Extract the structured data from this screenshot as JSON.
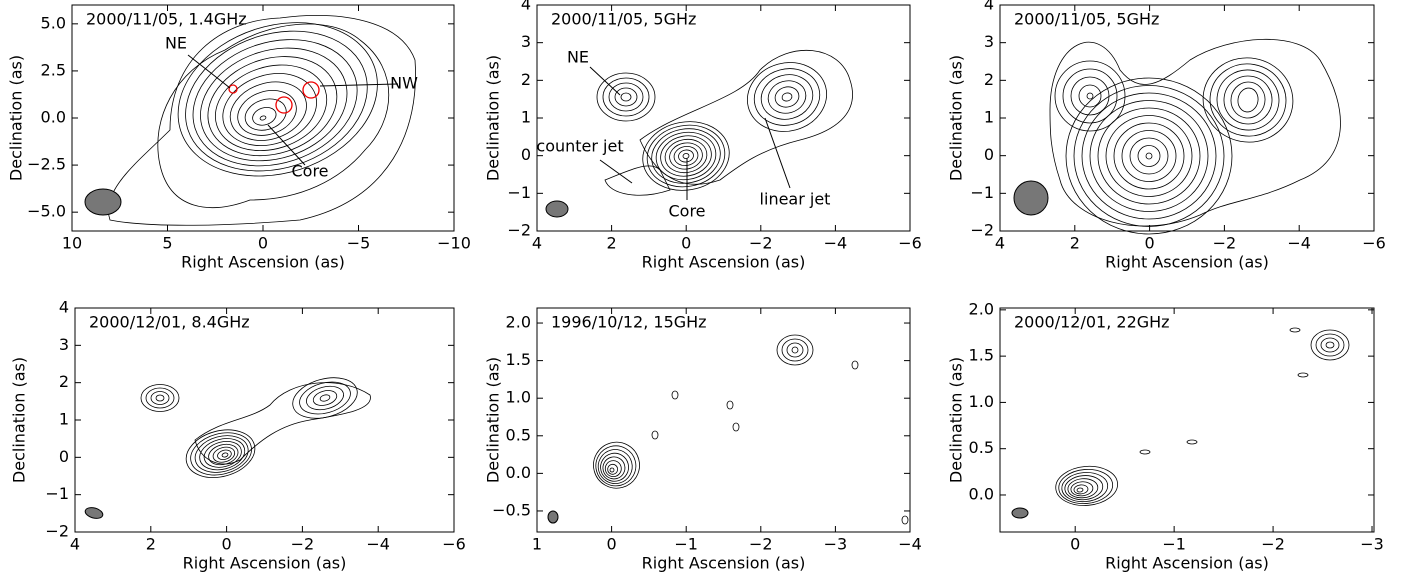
{
  "chart_data": [
    {
      "type": "contour",
      "title": "2000/11/05, 1.4GHz",
      "x_label": "Right Ascension (as)",
      "y_label": "Declination (as)",
      "xlim": [
        10,
        -10
      ],
      "xticks": [
        10,
        5,
        0,
        {
          "value": -5,
          "label": "−5"
        },
        {
          "value": -10,
          "label": "−10"
        }
      ],
      "ylim": [
        -6,
        6
      ],
      "yticks": [
        {
          "value": -5,
          "label": "−5.0"
        },
        {
          "value": -2.5,
          "label": "−2.5"
        },
        {
          "value": 0,
          "label": "0.0"
        },
        {
          "value": 2.5,
          "label": "2.5"
        },
        {
          "value": 5,
          "label": "5.0"
        }
      ],
      "annotations": [
        "NE",
        "NW",
        "Core"
      ]
    },
    {
      "type": "contour",
      "title": "2000/11/05, 5GHz",
      "x_label": "Right Ascension (as)",
      "y_label": "Declination (as)",
      "xlim": [
        4,
        -6
      ],
      "xticks": [
        4,
        2,
        0,
        {
          "value": -2,
          "label": "−2"
        },
        {
          "value": -4,
          "label": "−4"
        },
        {
          "value": -6,
          "label": "−6"
        }
      ],
      "ylim": [
        -2,
        4
      ],
      "yticks": [
        {
          "value": -2,
          "label": "−2"
        },
        {
          "value": -1,
          "label": "−1"
        },
        0,
        1,
        2,
        3,
        4
      ],
      "annotations": [
        "NE",
        "counter jet",
        "Core",
        "linear jet"
      ]
    },
    {
      "type": "contour",
      "title": "2000/11/05, 5GHz",
      "x_label": "Right Ascension (as)",
      "y_label": "Declination (as)",
      "xlim": [
        4,
        -6
      ],
      "xticks": [
        4,
        2,
        0,
        {
          "value": -2,
          "label": "−2"
        },
        {
          "value": -4,
          "label": "−4"
        },
        {
          "value": -6,
          "label": "−6"
        }
      ],
      "ylim": [
        -2,
        4
      ],
      "yticks": [
        {
          "value": -2,
          "label": "−2"
        },
        {
          "value": -1,
          "label": "−1"
        },
        0,
        1,
        2,
        3,
        4
      ]
    },
    {
      "type": "contour",
      "title": "2000/12/01, 8.4GHz",
      "x_label": "Right Ascension (as)",
      "y_label": "Declination (as)",
      "xlim": [
        4,
        -6
      ],
      "xticks": [
        4,
        2,
        0,
        {
          "value": -2,
          "label": "−2"
        },
        {
          "value": -4,
          "label": "−4"
        },
        {
          "value": -6,
          "label": "−6"
        }
      ],
      "ylim": [
        -2,
        4
      ],
      "yticks": [
        {
          "value": -2,
          "label": "−2"
        },
        {
          "value": -1,
          "label": "−1"
        },
        0,
        1,
        2,
        3,
        4
      ]
    },
    {
      "type": "contour",
      "title": "1996/10/12, 15GHz",
      "x_label": "Right Ascension (as)",
      "y_label": "Declination (as)",
      "xlim": [
        1,
        -4
      ],
      "xticks": [
        1,
        0,
        {
          "value": -1,
          "label": "−1"
        },
        {
          "value": -2,
          "label": "−2"
        },
        {
          "value": -3,
          "label": "−3"
        },
        {
          "value": -4,
          "label": "−4"
        }
      ],
      "ylim": [
        -0.78,
        2.2
      ],
      "yticks": [
        {
          "value": -0.5,
          "label": "−0.5"
        },
        {
          "value": 0,
          "label": "0.0"
        },
        {
          "value": 0.5,
          "label": "0.5"
        },
        {
          "value": 1,
          "label": "1.0"
        },
        {
          "value": 1.5,
          "label": "1.5"
        },
        {
          "value": 2,
          "label": "2.0"
        }
      ]
    },
    {
      "type": "contour",
      "title": "2000/12/01, 22GHz",
      "x_label": "Right Ascension (as)",
      "y_label": "Declination (as)",
      "xlim": [
        0.76,
        -3.02
      ],
      "xticks": [
        0,
        {
          "value": -1,
          "label": "−1"
        },
        {
          "value": -2,
          "label": "−2"
        },
        {
          "value": -3,
          "label": "−3"
        }
      ],
      "ylim": [
        -0.4,
        2.02
      ],
      "yticks": [
        {
          "value": 0,
          "label": "0.0"
        },
        {
          "value": 0.5,
          "label": "0.5"
        },
        {
          "value": 1,
          "label": "1.0"
        },
        {
          "value": 1.5,
          "label": "1.5"
        },
        {
          "value": 2,
          "label": "2.0"
        }
      ]
    }
  ]
}
